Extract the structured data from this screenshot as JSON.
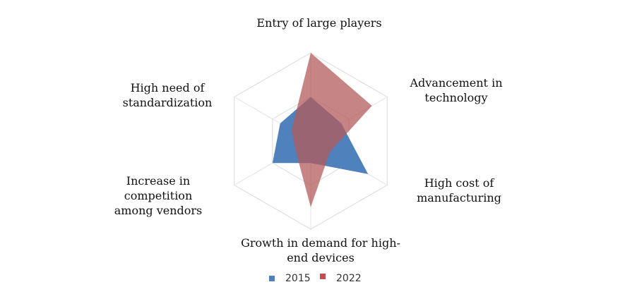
{
  "chart_data": {
    "type": "radar",
    "title": "",
    "axes": [
      "Entry of large players",
      "Advancement in technology",
      "High cost of manufacturing",
      "Growth in demand for high-end devices",
      "Increase in competition among vendors",
      "High need of standardization"
    ],
    "range": [
      0,
      4
    ],
    "grid_rings": 2,
    "grid": true,
    "legend_placement": "bottom",
    "series": [
      {
        "name": "2015",
        "color": "#4F81BD",
        "values": [
          2.0,
          1.6,
          3.0,
          1.0,
          2.0,
          1.6
        ]
      },
      {
        "name": "2022",
        "color": "#B35B5B",
        "values": [
          4.0,
          3.2,
          1.0,
          3.0,
          0.8,
          1.0
        ]
      }
    ]
  },
  "legend": {
    "items": [
      {
        "label": "2015",
        "color": "#4F81BD"
      },
      {
        "label": "2022",
        "color": "#C0504D"
      }
    ]
  }
}
